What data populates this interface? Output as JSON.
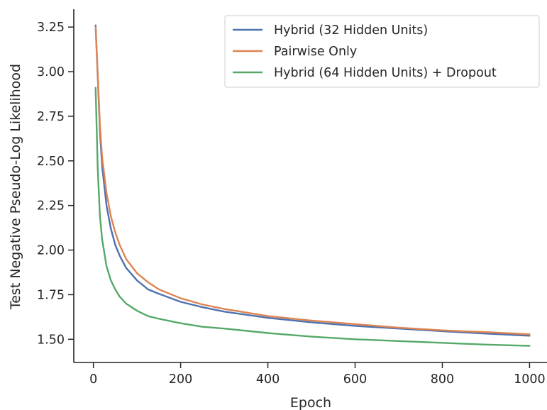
{
  "chart_data": {
    "type": "line",
    "title": "",
    "xlabel": "Epoch",
    "ylabel": "Test Negative Pseudo-Log Likelihood",
    "xlim": [
      -45,
      1040
    ],
    "ylim": [
      1.37,
      3.35
    ],
    "xticks": [
      0,
      200,
      400,
      600,
      800,
      1000
    ],
    "xtick_labels": [
      "0",
      "200",
      "400",
      "600",
      "800",
      "1000"
    ],
    "yticks": [
      1.5,
      1.75,
      2.0,
      2.25,
      2.5,
      2.75,
      3.0,
      3.25
    ],
    "ytick_labels": [
      "1.50",
      "1.75",
      "2.00",
      "2.25",
      "2.50",
      "2.75",
      "3.00",
      "3.25"
    ],
    "grid": false,
    "legend_position": "top-right",
    "series": [
      {
        "name": "Hybrid (32 Hidden Units)",
        "color": "#4c72b0",
        "x": [
          5,
          10,
          15,
          20,
          30,
          40,
          50,
          60,
          75,
          100,
          125,
          150,
          200,
          250,
          300,
          400,
          500,
          600,
          700,
          800,
          900,
          1000
        ],
        "y": [
          3.26,
          2.97,
          2.66,
          2.47,
          2.25,
          2.12,
          2.03,
          1.97,
          1.9,
          1.83,
          1.78,
          1.755,
          1.71,
          1.68,
          1.655,
          1.62,
          1.595,
          1.575,
          1.56,
          1.545,
          1.532,
          1.52
        ]
      },
      {
        "name": "Pairwise Only",
        "color": "#dd8452",
        "x": [
          5,
          10,
          15,
          20,
          30,
          40,
          50,
          60,
          75,
          100,
          125,
          150,
          200,
          250,
          300,
          400,
          500,
          600,
          700,
          800,
          900,
          1000
        ],
        "y": [
          3.25,
          2.98,
          2.7,
          2.52,
          2.32,
          2.19,
          2.1,
          2.03,
          1.95,
          1.87,
          1.82,
          1.78,
          1.73,
          1.695,
          1.67,
          1.63,
          1.605,
          1.585,
          1.565,
          1.55,
          1.54,
          1.528
        ]
      },
      {
        "name": "Hybrid (64 Hidden Units) + Dropout",
        "color": "#55a868",
        "x": [
          5,
          10,
          15,
          20,
          30,
          40,
          50,
          60,
          75,
          100,
          125,
          150,
          200,
          250,
          300,
          400,
          500,
          600,
          700,
          800,
          900,
          1000
        ],
        "y": [
          2.91,
          2.45,
          2.19,
          2.06,
          1.91,
          1.83,
          1.78,
          1.74,
          1.7,
          1.66,
          1.63,
          1.615,
          1.59,
          1.57,
          1.56,
          1.535,
          1.515,
          1.5,
          1.49,
          1.48,
          1.47,
          1.463
        ]
      }
    ]
  }
}
